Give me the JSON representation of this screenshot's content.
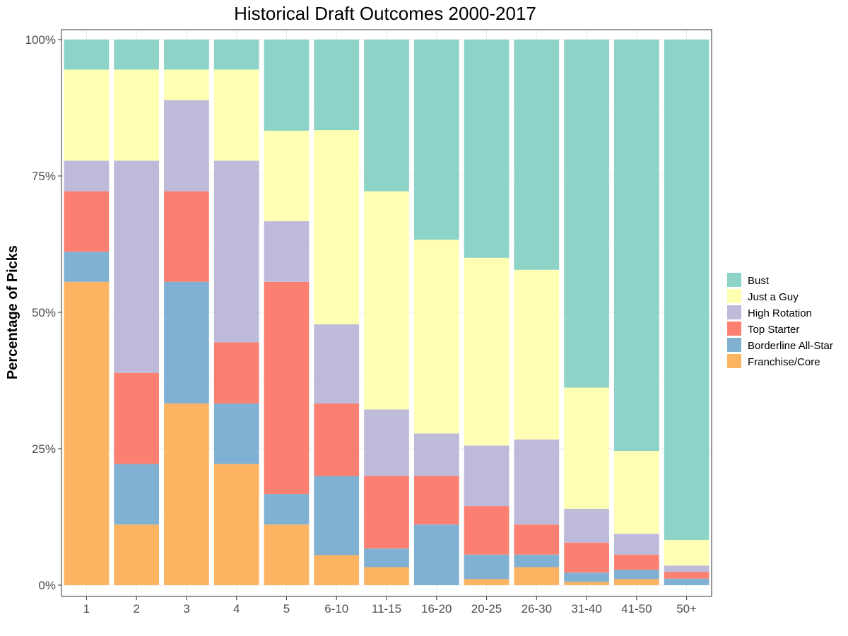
{
  "chart_data": {
    "type": "bar",
    "stacked": true,
    "title": "Historical Draft Outcomes 2000-2017",
    "xlabel": "",
    "ylabel": "Percentage of Picks",
    "ylim": [
      0,
      1
    ],
    "y_ticks": [
      {
        "value": 0,
        "label": "0%"
      },
      {
        "value": 0.25,
        "label": "25%"
      },
      {
        "value": 0.5,
        "label": "50%"
      },
      {
        "value": 0.75,
        "label": "75%"
      },
      {
        "value": 1,
        "label": "100%"
      }
    ],
    "grid": true,
    "legend_position": "right",
    "categories": [
      "1",
      "2",
      "3",
      "4",
      "5",
      "6-10",
      "11-15",
      "16-20",
      "20-25",
      "26-30",
      "31-40",
      "41-50",
      "50+"
    ],
    "series": [
      {
        "name": "Franchise/Core",
        "color": "#FDB462",
        "values": [
          0.556,
          0.111,
          0.333,
          0.222,
          0.111,
          0.055,
          0.033,
          0.0,
          0.011,
          0.033,
          0.006,
          0.011,
          0.0
        ]
      },
      {
        "name": "Borderline All-Star",
        "color": "#80B1D3",
        "values": [
          0.055,
          0.111,
          0.223,
          0.111,
          0.056,
          0.145,
          0.034,
          0.111,
          0.045,
          0.023,
          0.017,
          0.017,
          0.012
        ]
      },
      {
        "name": "Top Starter",
        "color": "#FB8072",
        "values": [
          0.111,
          0.167,
          0.166,
          0.112,
          0.389,
          0.133,
          0.133,
          0.089,
          0.089,
          0.055,
          0.055,
          0.028,
          0.012
        ]
      },
      {
        "name": "High Rotation",
        "color": "#BEBADA",
        "values": [
          0.056,
          0.389,
          0.167,
          0.333,
          0.111,
          0.145,
          0.122,
          0.078,
          0.111,
          0.156,
          0.062,
          0.038,
          0.012
        ]
      },
      {
        "name": "Just a Guy",
        "color": "#FFFFB3",
        "values": [
          0.167,
          0.167,
          0.056,
          0.167,
          0.166,
          0.356,
          0.4,
          0.355,
          0.344,
          0.311,
          0.222,
          0.152,
          0.047
        ]
      },
      {
        "name": "Bust",
        "color": "#8DD3C7",
        "values": [
          0.055,
          0.055,
          0.055,
          0.055,
          0.167,
          0.166,
          0.278,
          0.367,
          0.4,
          0.422,
          0.638,
          0.754,
          0.917
        ]
      }
    ],
    "legend_order": [
      "Bust",
      "Just a Guy",
      "High Rotation",
      "Top Starter",
      "Borderline All-Star",
      "Franchise/Core"
    ]
  }
}
